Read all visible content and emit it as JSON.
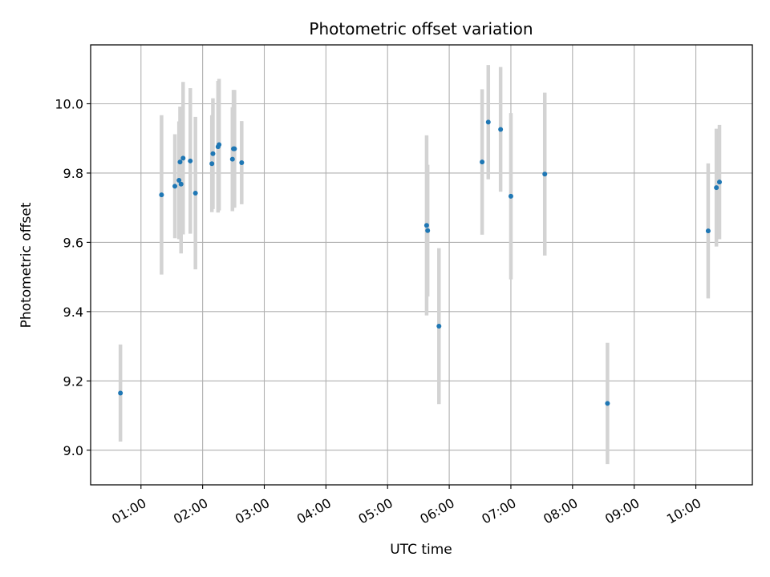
{
  "chart_data": {
    "type": "scatter",
    "title": "Photometric offset variation",
    "xlabel": "UTC time",
    "ylabel": "Photometric offset",
    "xlim": [
      "00:11",
      "10:55"
    ],
    "ylim": [
      8.9,
      10.17
    ],
    "grid": true,
    "x_ticks": [
      "01:00",
      "02:00",
      "03:00",
      "04:00",
      "05:00",
      "06:00",
      "07:00",
      "08:00",
      "09:00",
      "10:00"
    ],
    "y_ticks": [
      "9.0",
      "9.2",
      "9.4",
      "9.6",
      "9.8",
      "10.0"
    ],
    "colors": {
      "points": "#1f77b4",
      "errorbars": "#d3d3d3",
      "grid": "#b0b0b0"
    },
    "series": [
      {
        "points": [
          {
            "x": "00:40",
            "y": 9.165,
            "yerr": 0.14
          },
          {
            "x": "01:20",
            "y": 9.737,
            "yerr": 0.23
          },
          {
            "x": "01:33",
            "y": 9.762,
            "yerr": 0.15
          },
          {
            "x": "01:37",
            "y": 9.779,
            "yerr": 0.17
          },
          {
            "x": "01:38",
            "y": 9.832,
            "yerr": 0.16
          },
          {
            "x": "01:39",
            "y": 9.768,
            "yerr": 0.2
          },
          {
            "x": "01:41",
            "y": 9.843,
            "yerr": 0.22
          },
          {
            "x": "01:48",
            "y": 9.835,
            "yerr": 0.21
          },
          {
            "x": "01:53",
            "y": 9.742,
            "yerr": 0.22
          },
          {
            "x": "02:09",
            "y": 9.827,
            "yerr": 0.14
          },
          {
            "x": "02:10",
            "y": 9.856,
            "yerr": 0.16
          },
          {
            "x": "02:15",
            "y": 9.876,
            "yerr": 0.19
          },
          {
            "x": "02:16",
            "y": 9.882,
            "yerr": 0.19
          },
          {
            "x": "02:29",
            "y": 9.84,
            "yerr": 0.15
          },
          {
            "x": "02:30",
            "y": 9.87,
            "yerr": 0.17
          },
          {
            "x": "02:31",
            "y": 9.87,
            "yerr": 0.17
          },
          {
            "x": "02:38",
            "y": 9.83,
            "yerr": 0.12
          },
          {
            "x": "05:38",
            "y": 9.649,
            "yerr": 0.26
          },
          {
            "x": "05:39",
            "y": 9.634,
            "yerr": 0.19
          },
          {
            "x": "05:50",
            "y": 9.358,
            "yerr": 0.225
          },
          {
            "x": "06:32",
            "y": 9.832,
            "yerr": 0.21
          },
          {
            "x": "06:38",
            "y": 9.947,
            "yerr": 0.165
          },
          {
            "x": "06:50",
            "y": 9.926,
            "yerr": 0.18
          },
          {
            "x": "07:00",
            "y": 9.733,
            "yerr": 0.24
          },
          {
            "x": "07:33",
            "y": 9.797,
            "yerr": 0.235
          },
          {
            "x": "08:34",
            "y": 9.135,
            "yerr": 0.175
          },
          {
            "x": "10:12",
            "y": 9.633,
            "yerr": 0.195
          },
          {
            "x": "10:20",
            "y": 9.758,
            "yerr": 0.17
          },
          {
            "x": "10:23",
            "y": 9.774,
            "yerr": 0.165
          }
        ]
      }
    ]
  }
}
